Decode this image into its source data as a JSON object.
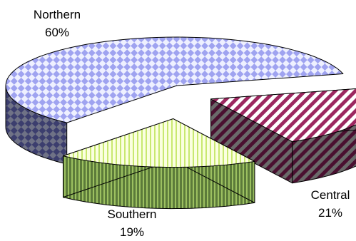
{
  "chart_data": {
    "type": "pie",
    "style": "3d-exploded",
    "grid": false,
    "legend": "none",
    "categories": [
      "Northern",
      "Central",
      "Southern"
    ],
    "values": [
      60,
      21,
      19
    ],
    "labels": [
      {
        "name": "Northern",
        "value": "60%"
      },
      {
        "name": "Central",
        "value": "21%"
      },
      {
        "name": "Southern",
        "value": "19%"
      }
    ],
    "colors": {
      "Northern": "#b8b8f8",
      "Central": "#9c2860",
      "Southern": "#e8f8b0"
    }
  }
}
